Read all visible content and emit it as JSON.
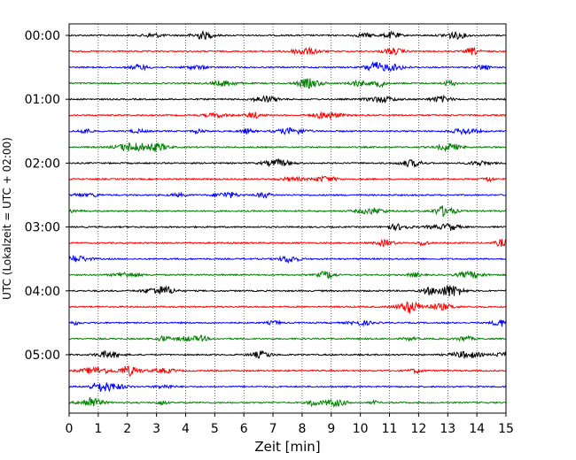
{
  "chart_data": {
    "type": "line",
    "title": "",
    "xlabel": "Zeit  [min]",
    "ylabel": "UTC (Lokalzeit = UTC + 02:00)",
    "xlim": [
      0,
      15
    ],
    "x_ticks": [
      0,
      1,
      2,
      3,
      4,
      5,
      6,
      7,
      8,
      9,
      10,
      11,
      12,
      13,
      14,
      15
    ],
    "y_tick_labels": [
      "00:00",
      "01:00",
      "02:00",
      "03:00",
      "04:00",
      "05:00"
    ],
    "trace_count": 24,
    "trace_minutes": 15,
    "trace_colors": [
      "#000000",
      "#ff0000",
      "#0000ff",
      "#008000"
    ],
    "grid": "vertical-dotted",
    "legend": "none"
  }
}
